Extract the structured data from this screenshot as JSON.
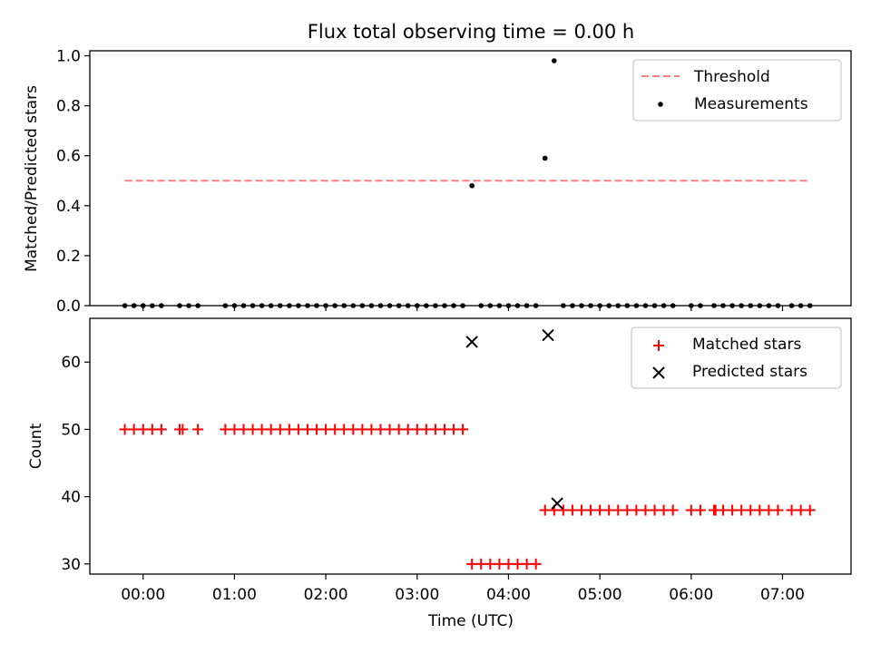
{
  "title": "Flux total observing time = 0.00 h",
  "chart_data": [
    {
      "type": "scatter",
      "ylabel": "Matched/Predicted stars",
      "xlabel": "",
      "ylim": [
        0,
        1.02
      ],
      "yticks": [
        0,
        0.2,
        0.4,
        0.6,
        0.8,
        1.0
      ],
      "ytick_labels": [
        "0.0",
        "0.2",
        "0.4",
        "0.6",
        "0.8",
        "1.0"
      ],
      "grid": false,
      "legend": "top-right",
      "threshold": {
        "name": "Threshold",
        "y": 0.5,
        "x_start": "23:48",
        "x_end": "07:18",
        "color": "#ff7f7f"
      },
      "series": [
        {
          "name": "Measurements",
          "color": "#000000",
          "marker": "dot",
          "x": [
            "23:48",
            "23:54",
            "00:00",
            "00:06",
            "00:12",
            "00:24",
            "00:30",
            "00:36",
            "00:54",
            "01:00",
            "01:06",
            "01:12",
            "01:18",
            "01:24",
            "01:30",
            "01:36",
            "01:42",
            "01:48",
            "01:54",
            "02:00",
            "02:06",
            "02:12",
            "02:18",
            "02:24",
            "02:30",
            "02:36",
            "02:42",
            "02:48",
            "02:54",
            "03:00",
            "03:06",
            "03:12",
            "03:18",
            "03:24",
            "03:30",
            "03:36",
            "03:42",
            "03:48",
            "03:54",
            "04:00",
            "04:06",
            "04:12",
            "04:18",
            "04:24",
            "04:30",
            "04:36",
            "04:42",
            "04:48",
            "04:54",
            "05:00",
            "05:06",
            "05:12",
            "05:18",
            "05:24",
            "05:30",
            "05:36",
            "05:42",
            "05:48",
            "06:00",
            "06:06",
            "06:15",
            "06:21",
            "06:27",
            "06:33",
            "06:39",
            "06:45",
            "06:51",
            "06:57",
            "07:06",
            "07:12",
            "07:18"
          ],
          "y": [
            0,
            0,
            0,
            0,
            0,
            0,
            0,
            0,
            0,
            0,
            0,
            0,
            0,
            0,
            0,
            0,
            0,
            0,
            0,
            0,
            0,
            0,
            0,
            0,
            0,
            0,
            0,
            0,
            0,
            0,
            0,
            0,
            0,
            0,
            0,
            0.48,
            0,
            0,
            0,
            0,
            0,
            0,
            0,
            0.59,
            0.98,
            0,
            0,
            0,
            0,
            0,
            0,
            0,
            0,
            0,
            0,
            0,
            0,
            0,
            0,
            0,
            0,
            0,
            0,
            0,
            0,
            0,
            0,
            0,
            0,
            0,
            0
          ]
        }
      ]
    },
    {
      "type": "scatter",
      "ylabel": "Count",
      "xlabel": "Time (UTC)",
      "ylim": [
        28.5,
        66.5
      ],
      "yticks": [
        30,
        40,
        50,
        60
      ],
      "ytick_labels": [
        "30",
        "40",
        "50",
        "60"
      ],
      "xlim": [
        "23:25",
        "07:45"
      ],
      "xticks": [
        "00:00",
        "01:00",
        "02:00",
        "03:00",
        "04:00",
        "05:00",
        "06:00",
        "07:00"
      ],
      "xtick_labels": [
        "00:00",
        "01:00",
        "02:00",
        "03:00",
        "04:00",
        "05:00",
        "06:00",
        "07:00"
      ],
      "grid": false,
      "legend": "top-right",
      "series": [
        {
          "name": "Matched stars",
          "color": "#ff0000",
          "marker": "plus",
          "x": [
            "23:48",
            "23:54",
            "00:00",
            "00:06",
            "00:12",
            "00:24",
            "00:26",
            "00:36",
            "00:54",
            "01:00",
            "01:06",
            "01:12",
            "01:18",
            "01:24",
            "01:30",
            "01:36",
            "01:42",
            "01:48",
            "01:54",
            "02:00",
            "02:06",
            "02:12",
            "02:18",
            "02:24",
            "02:30",
            "02:36",
            "02:42",
            "02:48",
            "02:54",
            "03:00",
            "03:06",
            "03:12",
            "03:18",
            "03:24",
            "03:30",
            "03:36",
            "03:42",
            "03:48",
            "03:54",
            "04:00",
            "04:06",
            "04:12",
            "04:18",
            "04:24",
            "04:30",
            "04:36",
            "04:42",
            "04:48",
            "04:54",
            "05:00",
            "05:06",
            "05:12",
            "05:18",
            "05:24",
            "05:30",
            "05:36",
            "05:42",
            "05:48",
            "06:00",
            "06:06",
            "06:15",
            "06:16",
            "06:21",
            "06:27",
            "06:33",
            "06:39",
            "06:45",
            "06:51",
            "06:57",
            "07:06",
            "07:12",
            "07:18"
          ],
          "y": [
            50,
            50,
            50,
            50,
            50,
            50,
            50,
            50,
            50,
            50,
            50,
            50,
            50,
            50,
            50,
            50,
            50,
            50,
            50,
            50,
            50,
            50,
            50,
            50,
            50,
            50,
            50,
            50,
            50,
            50,
            50,
            50,
            50,
            50,
            50,
            30,
            30,
            30,
            30,
            30,
            30,
            30,
            30,
            38,
            38,
            38,
            38,
            38,
            38,
            38,
            38,
            38,
            38,
            38,
            38,
            38,
            38,
            38,
            38,
            38,
            38,
            38,
            38,
            38,
            38,
            38,
            38,
            38,
            38,
            38,
            38,
            38
          ]
        },
        {
          "name": "Predicted stars",
          "color": "#000000",
          "marker": "x",
          "x": [
            "03:36",
            "04:26",
            "04:32"
          ],
          "y": [
            63,
            64,
            39
          ]
        }
      ]
    }
  ]
}
